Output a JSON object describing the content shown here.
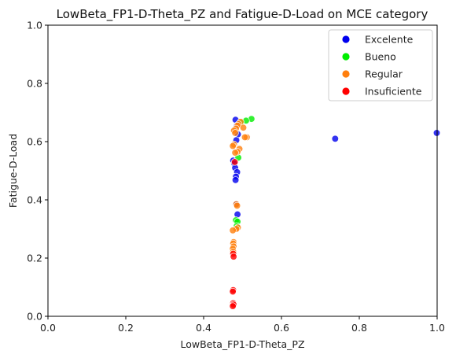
{
  "chart_data": {
    "type": "scatter",
    "title": "LowBeta_FP1-D-Theta_PZ and Fatigue-D-Load on MCE category",
    "xlabel": "LowBeta_FP1-D-Theta_PZ",
    "ylabel": "Fatigue-D-Load",
    "xlim": [
      0.0,
      1.0
    ],
    "ylim": [
      0.0,
      1.0
    ],
    "x_ticks": [
      "0.0",
      "0.2",
      "0.4",
      "0.6",
      "0.8",
      "1.0"
    ],
    "y_ticks": [
      "0.0",
      "0.2",
      "0.4",
      "0.6",
      "0.8",
      "1.0"
    ],
    "grid": false,
    "legend_position": "top-right",
    "series": [
      {
        "name": "Excelente",
        "color": "#0000ee",
        "points": [
          [
            0.482,
            0.675
          ],
          [
            0.485,
            0.655
          ],
          [
            0.488,
            0.625
          ],
          [
            0.484,
            0.605
          ],
          [
            0.476,
            0.535
          ],
          [
            0.479,
            0.525
          ],
          [
            0.481,
            0.51
          ],
          [
            0.486,
            0.495
          ],
          [
            0.483,
            0.48
          ],
          [
            0.482,
            0.468
          ],
          [
            0.487,
            0.35
          ],
          [
            0.484,
            0.385
          ],
          [
            0.738,
            0.61
          ],
          [
            0.999,
            0.63
          ]
        ]
      },
      {
        "name": "Bueno",
        "color": "#00ee00",
        "points": [
          [
            0.523,
            0.678
          ],
          [
            0.509,
            0.672
          ],
          [
            0.495,
            0.665
          ],
          [
            0.489,
            0.545
          ],
          [
            0.483,
            0.33
          ],
          [
            0.487,
            0.325
          ],
          [
            0.485,
            0.31
          ]
        ]
      },
      {
        "name": "Regular",
        "color": "#ff7f0e",
        "points": [
          [
            0.495,
            0.668
          ],
          [
            0.49,
            0.66
          ],
          [
            0.487,
            0.655
          ],
          [
            0.502,
            0.648
          ],
          [
            0.483,
            0.645
          ],
          [
            0.478,
            0.638
          ],
          [
            0.481,
            0.63
          ],
          [
            0.511,
            0.615
          ],
          [
            0.506,
            0.615
          ],
          [
            0.478,
            0.59
          ],
          [
            0.475,
            0.585
          ],
          [
            0.492,
            0.575
          ],
          [
            0.487,
            0.565
          ],
          [
            0.481,
            0.562
          ],
          [
            0.484,
            0.385
          ],
          [
            0.486,
            0.38
          ],
          [
            0.488,
            0.305
          ],
          [
            0.484,
            0.3
          ],
          [
            0.475,
            0.295
          ],
          [
            0.477,
            0.255
          ],
          [
            0.476,
            0.25
          ],
          [
            0.477,
            0.24
          ],
          [
            0.475,
            0.232
          ],
          [
            0.476,
            0.222
          ]
        ]
      },
      {
        "name": "Insuficiente",
        "color": "#ff0000",
        "points": [
          [
            0.48,
            0.53
          ],
          [
            0.476,
            0.215
          ],
          [
            0.477,
            0.205
          ],
          [
            0.476,
            0.09
          ],
          [
            0.475,
            0.085
          ],
          [
            0.476,
            0.045
          ],
          [
            0.477,
            0.04
          ],
          [
            0.475,
            0.035
          ]
        ]
      }
    ]
  }
}
